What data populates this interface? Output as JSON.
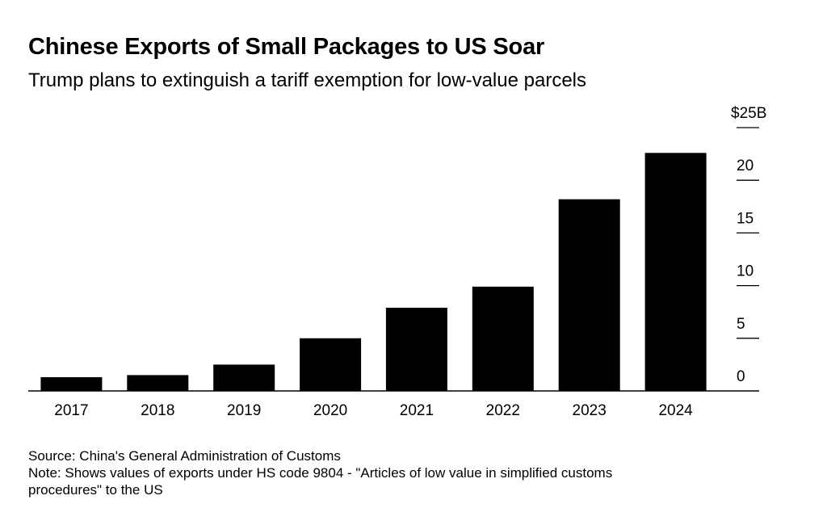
{
  "header": {
    "title": "Chinese Exports of Small Packages to US Soar",
    "subtitle": "Trump plans to extinguish a tariff exemption for low-value parcels"
  },
  "chart_data": {
    "type": "bar",
    "categories": [
      "2017",
      "2018",
      "2019",
      "2020",
      "2021",
      "2022",
      "2023",
      "2024"
    ],
    "values": [
      1.3,
      1.5,
      2.5,
      5.0,
      7.9,
      9.9,
      18.2,
      22.6
    ],
    "ylim": [
      0,
      25
    ],
    "y_ticks": [
      0,
      5,
      10,
      15,
      20,
      25
    ],
    "y_tick_labels": [
      "0",
      "5",
      "10",
      "15",
      "20",
      "$25B"
    ],
    "y_axis_position": "right",
    "grid": false,
    "bar_color": "#000000"
  },
  "footer": {
    "source": "Source: China's General Administration of Customs",
    "note_line1": "Note: Shows values of exports under HS code 9804 - \"Articles of low value in simplified customs",
    "note_line2": "procedures\" to the US"
  }
}
